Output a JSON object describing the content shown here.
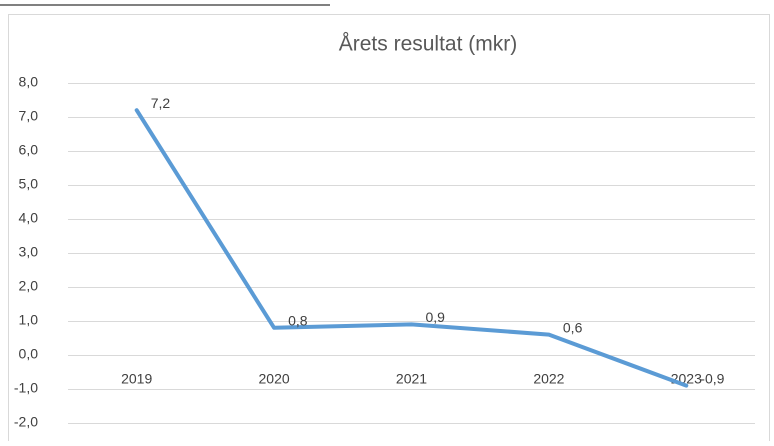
{
  "chart_data": {
    "type": "line",
    "title": "Årets resultat (mkr)",
    "categories": [
      "2019",
      "2020",
      "2021",
      "2022",
      "2023"
    ],
    "values": [
      7.2,
      0.8,
      0.9,
      0.6,
      -0.9
    ],
    "value_labels": [
      "7,2",
      "0,8",
      "0,9",
      "0,6",
      "-0,9"
    ],
    "color": "#5b9bd5",
    "ylim": [
      -2,
      8
    ],
    "yticks": [
      {
        "value": -2,
        "label": "-2,0"
      },
      {
        "value": -1,
        "label": "-1,0"
      },
      {
        "value": 0,
        "label": "0,0"
      },
      {
        "value": 1,
        "label": "1,0"
      },
      {
        "value": 2,
        "label": "2,0"
      },
      {
        "value": 3,
        "label": "3,0"
      },
      {
        "value": 4,
        "label": "4,0"
      },
      {
        "value": 5,
        "label": "5,0"
      },
      {
        "value": 6,
        "label": "6,0"
      },
      {
        "value": 7,
        "label": "7,0"
      },
      {
        "value": 8,
        "label": "8,0"
      }
    ],
    "grid": true
  }
}
